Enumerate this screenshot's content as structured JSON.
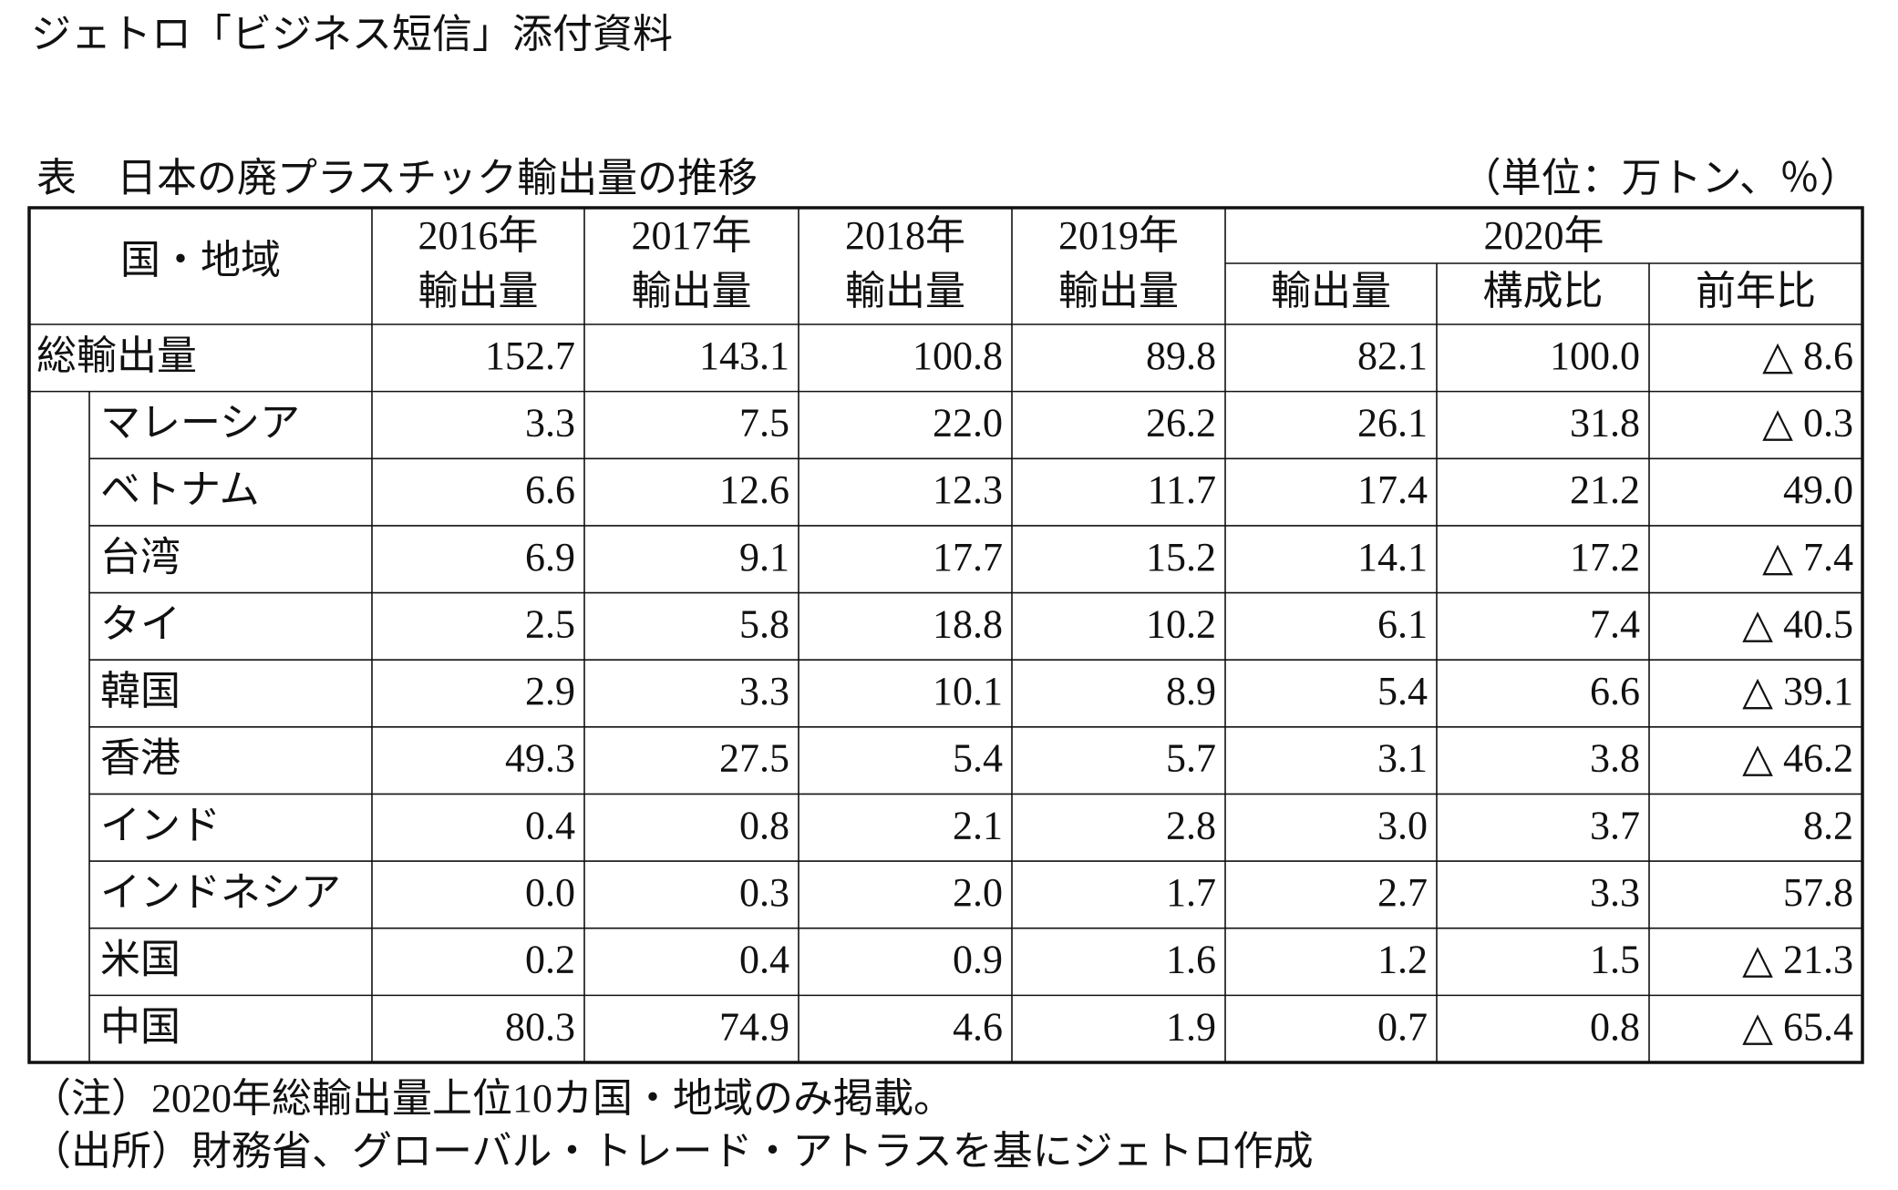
{
  "header": {
    "title": "ジェトロ「ビジネス短信」添付資料"
  },
  "table": {
    "caption": "表　日本の廃プラスチック輸出量の推移",
    "unit": "（単位：万トン、％）",
    "region_header": "国・地域",
    "columns": [
      {
        "year": "2016年",
        "label": "輸出量"
      },
      {
        "year": "2017年",
        "label": "輸出量"
      },
      {
        "year": "2018年",
        "label": "輸出量"
      },
      {
        "year": "2019年",
        "label": "輸出量"
      }
    ],
    "group": {
      "year": "2020年",
      "labels": [
        "輸出量",
        "構成比",
        "前年比"
      ]
    },
    "rows": [
      {
        "name": "総輸出量",
        "cells": [
          "152.7",
          "143.1",
          "100.8",
          "89.8",
          "82.1",
          "100.0",
          "△ 8.6"
        ]
      },
      {
        "name": "マレーシア",
        "cells": [
          "3.3",
          "7.5",
          "22.0",
          "26.2",
          "26.1",
          "31.8",
          "△ 0.3"
        ]
      },
      {
        "name": "ベトナム",
        "cells": [
          "6.6",
          "12.6",
          "12.3",
          "11.7",
          "17.4",
          "21.2",
          "49.0"
        ]
      },
      {
        "name": "台湾",
        "cells": [
          "6.9",
          "9.1",
          "17.7",
          "15.2",
          "14.1",
          "17.2",
          "△ 7.4"
        ]
      },
      {
        "name": "タイ",
        "cells": [
          "2.5",
          "5.8",
          "18.8",
          "10.2",
          "6.1",
          "7.4",
          "△ 40.5"
        ]
      },
      {
        "name": "韓国",
        "cells": [
          "2.9",
          "3.3",
          "10.1",
          "8.9",
          "5.4",
          "6.6",
          "△ 39.1"
        ]
      },
      {
        "name": "香港",
        "cells": [
          "49.3",
          "27.5",
          "5.4",
          "5.7",
          "3.1",
          "3.8",
          "△ 46.2"
        ]
      },
      {
        "name": "インド",
        "cells": [
          "0.4",
          "0.8",
          "2.1",
          "2.8",
          "3.0",
          "3.7",
          "8.2"
        ]
      },
      {
        "name": "インドネシア",
        "cells": [
          "0.0",
          "0.3",
          "2.0",
          "1.7",
          "2.7",
          "3.3",
          "57.8"
        ]
      },
      {
        "name": "米国",
        "cells": [
          "0.2",
          "0.4",
          "0.9",
          "1.6",
          "1.2",
          "1.5",
          "△ 21.3"
        ]
      },
      {
        "name": "中国",
        "cells": [
          "80.3",
          "74.9",
          "4.6",
          "1.9",
          "0.7",
          "0.8",
          "△ 65.4"
        ]
      }
    ]
  },
  "notes": [
    "（注）2020年総輸出量上位10カ国・地域のみ掲載。",
    "（出所）財務省、グローバル・トレード・アトラスを基にジェトロ作成"
  ]
}
